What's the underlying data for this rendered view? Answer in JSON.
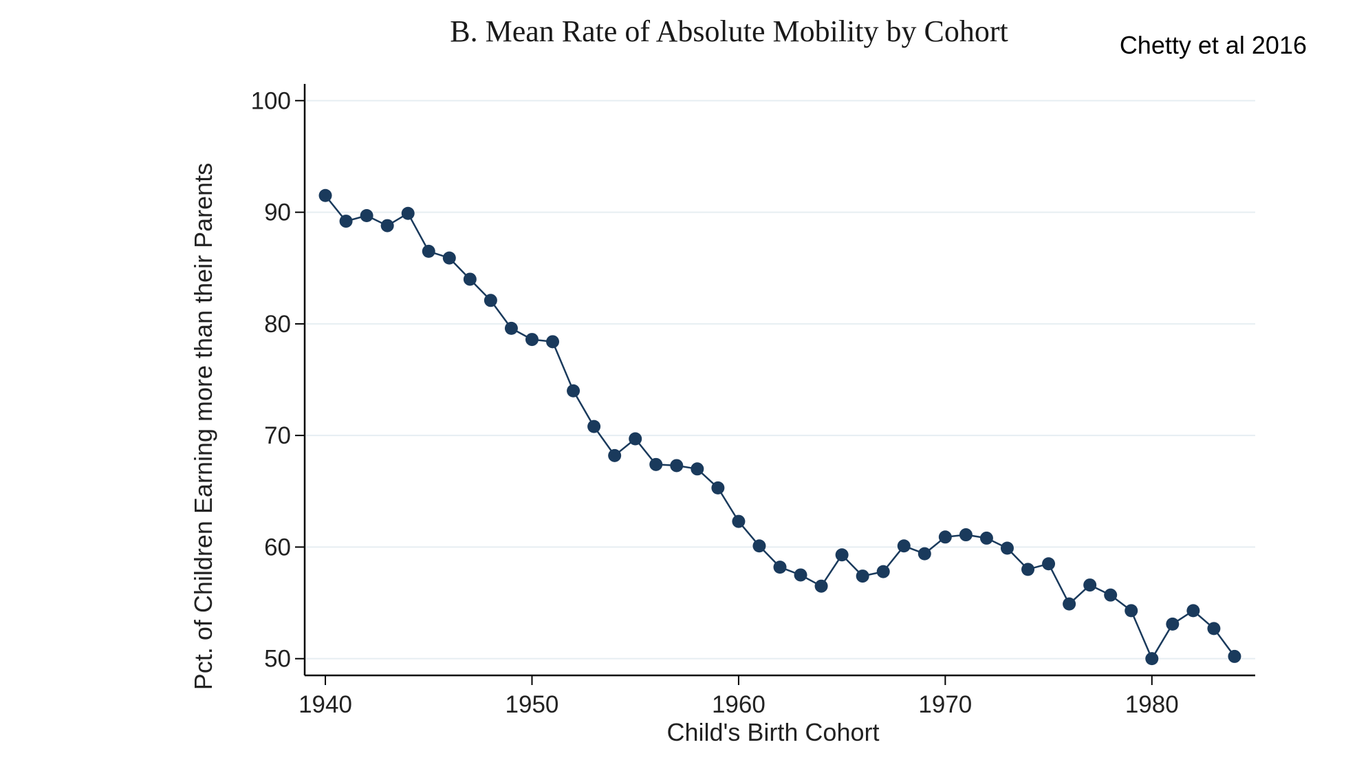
{
  "attribution": "Chetty et al 2016",
  "colors": {
    "series": "#1a3a5c",
    "axis": "#000000",
    "grid": "#e6eef2"
  },
  "chart_data": {
    "type": "line",
    "title": "B. Mean Rate of Absolute Mobility by Cohort",
    "xlabel": "Child's Birth Cohort",
    "ylabel": "Pct. of Children Earning more than their Parents",
    "xlim": [
      1939,
      1985
    ],
    "ylim": [
      48.5,
      101.5
    ],
    "x_ticks": [
      1940,
      1950,
      1960,
      1970,
      1980
    ],
    "y_ticks": [
      50,
      60,
      70,
      80,
      90,
      100
    ],
    "grid": true,
    "markers": "circle",
    "x": [
      1940,
      1941,
      1942,
      1943,
      1944,
      1945,
      1946,
      1947,
      1948,
      1949,
      1950,
      1951,
      1952,
      1953,
      1954,
      1955,
      1956,
      1957,
      1958,
      1959,
      1960,
      1961,
      1962,
      1963,
      1964,
      1965,
      1966,
      1967,
      1968,
      1969,
      1970,
      1971,
      1972,
      1973,
      1974,
      1975,
      1976,
      1977,
      1978,
      1979,
      1980,
      1981,
      1982,
      1983,
      1984
    ],
    "values": [
      91.5,
      89.2,
      89.7,
      88.8,
      89.9,
      86.5,
      85.9,
      84.0,
      82.1,
      79.6,
      78.6,
      78.4,
      74.0,
      70.8,
      68.2,
      69.7,
      67.4,
      67.3,
      67.0,
      65.3,
      62.3,
      60.1,
      58.2,
      57.5,
      56.5,
      59.3,
      57.4,
      57.8,
      60.1,
      59.4,
      60.9,
      61.1,
      60.8,
      59.9,
      58.0,
      58.5,
      54.9,
      56.6,
      55.7,
      54.3,
      50.0,
      53.1,
      54.3,
      52.7,
      50.2
    ]
  }
}
